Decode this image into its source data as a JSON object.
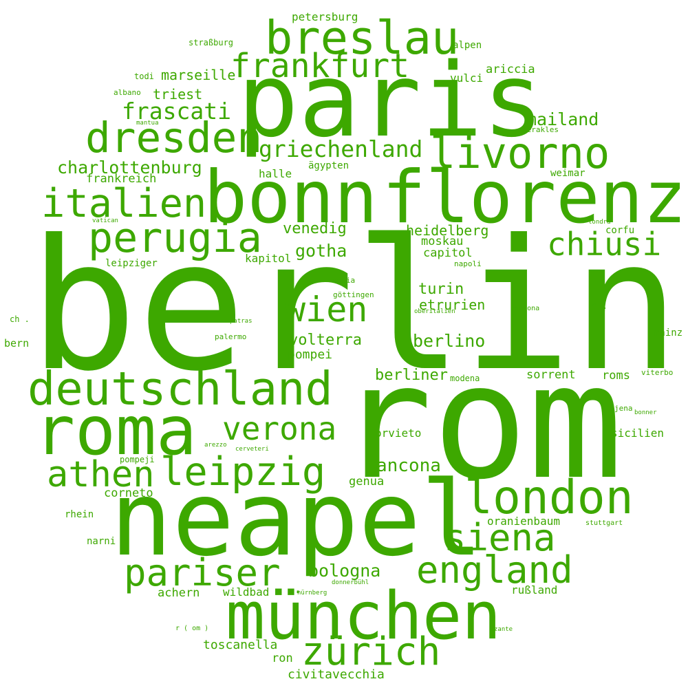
{
  "accent_color": "#3da800",
  "background_color": "#ffffff",
  "words": [
    "berlin",
    "rom",
    "neapel",
    "paris",
    "bonn",
    "florenz",
    "münchen",
    "roma",
    "deutschland",
    "london",
    "breslau",
    "dresden",
    "frankfurt",
    "livorno",
    "italien",
    "perugia",
    "athen",
    "leipzig",
    "zürich",
    "england",
    "pariser",
    "siena",
    "wien",
    "verona",
    "chiusi",
    "griechenland",
    "charlottenburg",
    "frascati",
    "mailand",
    "gotha",
    "venedig",
    "heidelberg",
    "ancona",
    "bologna",
    "berlino",
    "volterra",
    "turin",
    "etrurien",
    "berliner",
    "marseille",
    "triest",
    "frankreich",
    "halle",
    "ägypten",
    "weimar",
    "moskau",
    "capitol",
    "kapitol",
    "leipziger",
    "corfu",
    "pompei",
    "sorrent",
    "roms",
    "orvieto",
    "sicilien",
    "genua",
    "corneto",
    "oranienbaum",
    "rhein",
    "narni",
    "achern",
    "wildbad",
    "rußland",
    "toscanella",
    "ron",
    "civitavecchia",
    "petersburg",
    "straßburg",
    "alpen",
    "ariccia",
    "vulci",
    "todi",
    "albano",
    "mantua",
    "herakles",
    "vatican",
    "londra",
    "napoli",
    "appia",
    "göttingen",
    "oberitalien",
    "cortona",
    "r .",
    "ch .",
    "patras",
    "palermo",
    "bern",
    "mainz",
    "modena",
    "viterbo",
    "jena",
    "bonner",
    "arezzo",
    "cerveteri",
    "pompeji",
    "stuttgart",
    "donnerbühl",
    "nürnberg",
    "r ( om )",
    "zante",
    ". ."
  ]
}
